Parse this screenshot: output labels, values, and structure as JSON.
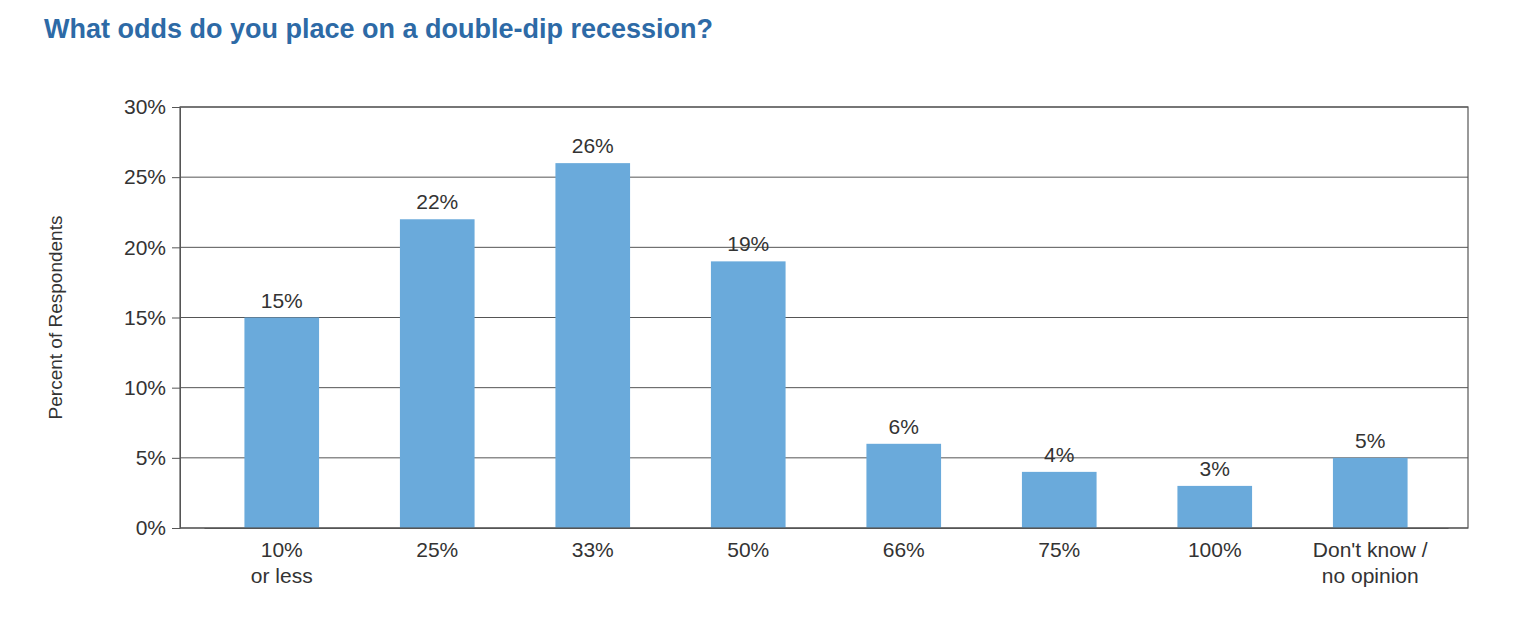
{
  "chart_data": {
    "type": "bar",
    "title": "What odds do you place on a double-dip recession?",
    "y_label": "Percent of Respondents",
    "categories": [
      "10%\nor less",
      "25%",
      "33%",
      "50%",
      "66%",
      "75%",
      "100%",
      "Don't know /\nno opinion"
    ],
    "values": [
      15,
      22,
      26,
      19,
      6,
      4,
      3,
      5
    ],
    "value_labels": [
      "15%",
      "22%",
      "26%",
      "19%",
      "6%",
      "4%",
      "3%",
      "5%"
    ],
    "color": "#6aaadb",
    "ylim": [
      0,
      30
    ],
    "yticks": [
      {
        "value": 0,
        "label": "0%"
      },
      {
        "value": 5,
        "label": "5%"
      },
      {
        "value": 10,
        "label": "10%"
      },
      {
        "value": 15,
        "label": "15%"
      },
      {
        "value": 20,
        "label": "20%"
      },
      {
        "value": 25,
        "label": "25%"
      },
      {
        "value": 30,
        "label": "30%"
      }
    ],
    "grid": true,
    "data_labels": true
  }
}
